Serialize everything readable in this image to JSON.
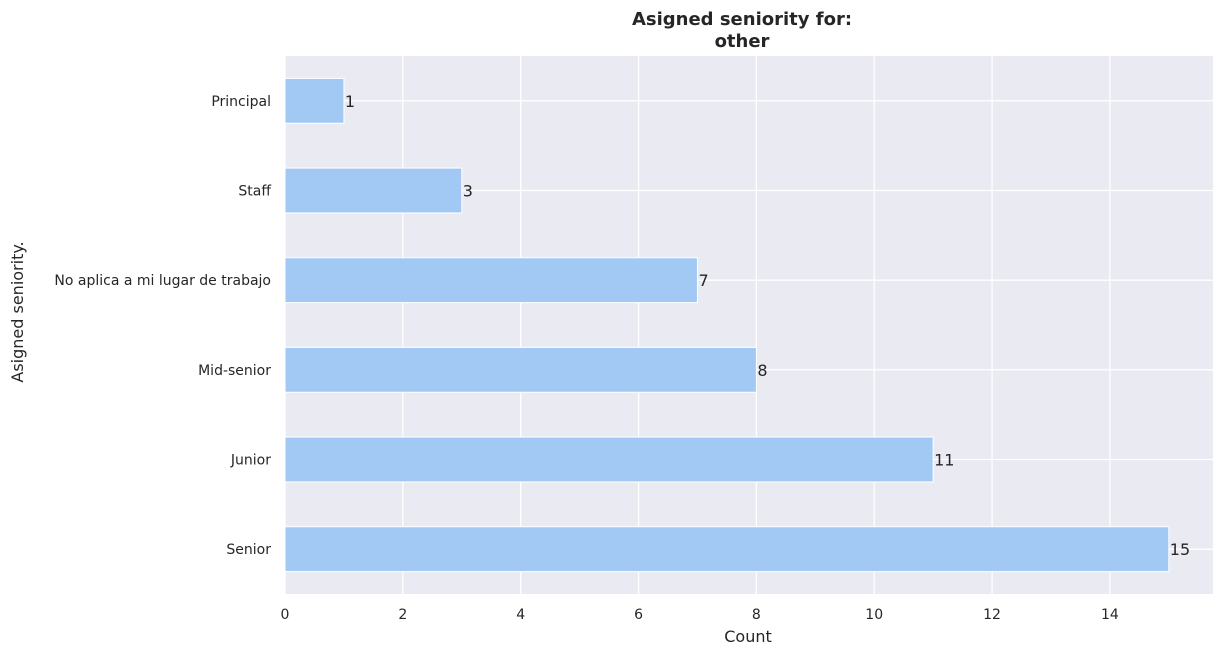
{
  "chart_data": {
    "type": "bar",
    "orientation": "horizontal",
    "title_line1": "Asigned seniority for:",
    "title_line2": "other",
    "xlabel": "Count",
    "ylabel": "Asigned seniority.",
    "categories": [
      "Senior",
      "Junior",
      "Mid-senior",
      "No aplica a mi lugar de trabajo",
      "Staff",
      "Principal"
    ],
    "values": [
      15,
      11,
      8,
      7,
      3,
      1
    ],
    "xlim": [
      0,
      15.75
    ],
    "xticks": [
      0,
      2,
      4,
      6,
      8,
      10,
      12,
      14
    ],
    "grid": true,
    "colors": {
      "bar": "#a1c9f4",
      "plot_background": "#eaeaf2",
      "grid": "#ffffff",
      "text": "#262626"
    }
  }
}
